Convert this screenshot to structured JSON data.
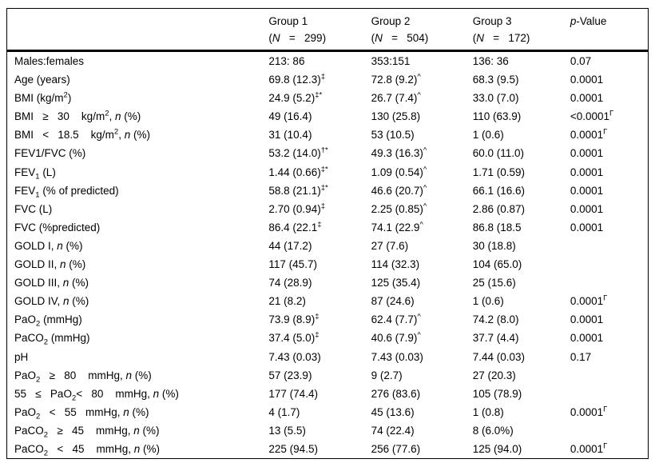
{
  "page": {
    "background": "#ffffff",
    "text_color": "#000000",
    "rule_color": "#000000"
  },
  "table": {
    "header": {
      "col_label": "",
      "col1_line1": "Group 1",
      "col1_line2": "(<i>N</i>&nbsp;&nbsp;&nbsp;=&nbsp;&nbsp;&nbsp;299)",
      "col2_line1": "Group 2",
      "col2_line2": "(<i>N</i>&nbsp;&nbsp;&nbsp;=&nbsp;&nbsp;&nbsp;504)",
      "col3_line1": "Group 3",
      "col3_line2": "(<i>N</i>&nbsp;&nbsp;&nbsp;=&nbsp;&nbsp;&nbsp;172)",
      "colp": "<i>p</i>-Value"
    },
    "superscript_legend": [
      "‡",
      "‡*",
      "†*",
      "^",
      "Γ"
    ],
    "rows": [
      {
        "label": "Males:females",
        "group1": "213: 86",
        "group2": "353:151",
        "group3": "136: 36",
        "p": "0.07"
      },
      {
        "label": "Age (years)",
        "group1": "69.8 (12.3)<sup>‡</sup>",
        "group2": "72.8 (9.2)<sup>^</sup>",
        "group3": "68.3 (9.5)",
        "p": "0.0001"
      },
      {
        "label": "BMI (kg/m<sup>2</sup>)",
        "group1": "24.9 (5.2)<sup>‡*</sup>",
        "group2": "26.7 (7.4)<sup>^</sup>",
        "group3": "33.0 (7.0)",
        "p": "0.0001"
      },
      {
        "label": "BMI&nbsp;&nbsp;&nbsp;≥&nbsp;&nbsp;&nbsp;30&nbsp;&nbsp;&nbsp;&nbsp;kg/m<sup>2</sup>, <i>n</i> (%)",
        "group1": "49 (16.4)",
        "group2": "130 (25.8)",
        "group3": "110 (63.9)",
        "p": "&lt;0.0001<sup>Γ</sup>"
      },
      {
        "label": "BMI&nbsp;&nbsp;&nbsp;&lt;&nbsp;&nbsp;&nbsp;18.5&nbsp;&nbsp;&nbsp;&nbsp;kg/m<sup>2</sup>, <i>n</i> (%)",
        "group1": "31 (10.4)",
        "group2": "53 (10.5)",
        "group3": "1 (0.6)",
        "p": "0.0001<sup>Γ</sup>"
      },
      {
        "label": "FEV1/FVC (%)",
        "group1": "53.2 (14.0)<sup>†*</sup>",
        "group2": "49.3 (16.3)<sup>^</sup>",
        "group3": "60.0 (11.0)",
        "p": "0.0001"
      },
      {
        "label": "FEV<sub>1</sub> (L)",
        "group1": "1.44 (0.66)<sup>‡*</sup>",
        "group2": "1.09 (0.54)<sup>^</sup>",
        "group3": "1.71 (0.59)",
        "p": "0.0001"
      },
      {
        "label": "FEV<sub>1</sub> (% of predicted)",
        "group1": "58.8 (21.1)<sup>‡*</sup>",
        "group2": "46.6 (20.7)<sup>^</sup>",
        "group3": "66.1 (16.6)",
        "p": "0.0001"
      },
      {
        "label": "FVC (L)",
        "group1": "2.70 (0.94)<sup>‡</sup>",
        "group2": "2.25 (0.85)<sup>^</sup>",
        "group3": "2.86 (0.87)",
        "p": "0.0001"
      },
      {
        "label": "FVC (%predicted)",
        "group1": "86.4 (22.1<sup>‡</sup>",
        "group2": "74.1 (22.9<sup>^</sup>",
        "group3": "86.8 (18.5",
        "p": "0.0001"
      },
      {
        "label": "GOLD I, <i>n</i> (%)",
        "group1": "44 (17.2)",
        "group2": "27 (7.6)",
        "group3": "30 (18.8)",
        "p": ""
      },
      {
        "label": "GOLD II, <i>n</i> (%)",
        "group1": "117 (45.7)",
        "group2": "114 (32.3)",
        "group3": "104 (65.0)",
        "p": ""
      },
      {
        "label": "GOLD III, <i>n</i> (%)",
        "group1": "74 (28.9)",
        "group2": "125 (35.4)",
        "group3": "25 (15.6)",
        "p": ""
      },
      {
        "label": "GOLD IV, <i>n</i> (%)",
        "group1": "21 (8.2)",
        "group2": "87 (24.6)",
        "group3": "1 (0.6)",
        "p": "0.0001<sup>Γ</sup>"
      },
      {
        "label": "PaO<sub>2</sub> (mmHg)",
        "group1": "73.9 (8.9)<sup>‡</sup>",
        "group2": "62.4 (7.7)<sup>^</sup>",
        "group3": "74.2 (8.0)",
        "p": "0.0001"
      },
      {
        "label": "PaCO<sub>2</sub> (mmHg)",
        "group1": "37.4 (5.0)<sup>‡</sup>",
        "group2": "40.6 (7.9)<sup>^</sup>",
        "group3": "37.7 (4.4)",
        "p": "0.0001"
      },
      {
        "label": "pH",
        "group1": "7.43 (0.03)",
        "group2": "7.43 (0.03)",
        "group3": "7.44 (0.03)",
        "p": "0.17"
      },
      {
        "label": "PaO<sub>2</sub>&nbsp;&nbsp;&nbsp;≥&nbsp;&nbsp;&nbsp;80&nbsp;&nbsp;&nbsp;&nbsp;mmHg, <i>n</i> (%)",
        "group1": "57 (23.9)",
        "group2": "9 (2.7)",
        "group3": "27 (20.3)",
        "p": ""
      },
      {
        "label": "55&nbsp;&nbsp;&nbsp;≤&nbsp;&nbsp;&nbsp;PaO<sub>2</sub>&lt;&nbsp;&nbsp;&nbsp;80&nbsp;&nbsp;&nbsp;&nbsp;mmHg, <i>n</i> (%)",
        "group1": "177 (74.4)",
        "group2": "276 (83.6)",
        "group3": "105 (78.9)",
        "p": ""
      },
      {
        "label": "PaO<sub>2</sub>&nbsp;&nbsp;&nbsp;&lt;&nbsp;&nbsp;&nbsp;55&nbsp;&nbsp;&nbsp;mmHg, <i>n</i> (%)",
        "group1": "4 (1.7)",
        "group2": "45 (13.6)",
        "group3": "1 (0.8)",
        "p": "0.0001<sup>Γ</sup>"
      },
      {
        "label": "PaCO<sub>2</sub>&nbsp;&nbsp;&nbsp;≥&nbsp;&nbsp;&nbsp;45&nbsp;&nbsp;&nbsp;&nbsp;mmHg, <i>n</i> (%)",
        "group1": "13 (5.5)",
        "group2": "74 (22.4)",
        "group3": "8 (6.0%)",
        "p": ""
      },
      {
        "label": "PaCO<sub>2</sub>&nbsp;&nbsp;&nbsp;&lt;&nbsp;&nbsp;&nbsp;45&nbsp;&nbsp;&nbsp;&nbsp;mmHg, <i>n</i> (%)",
        "group1": "225 (94.5)",
        "group2": "256 (77.6)",
        "group3": "125 (94.0)",
        "p": "0.0001<sup>Γ</sup>"
      }
    ]
  }
}
